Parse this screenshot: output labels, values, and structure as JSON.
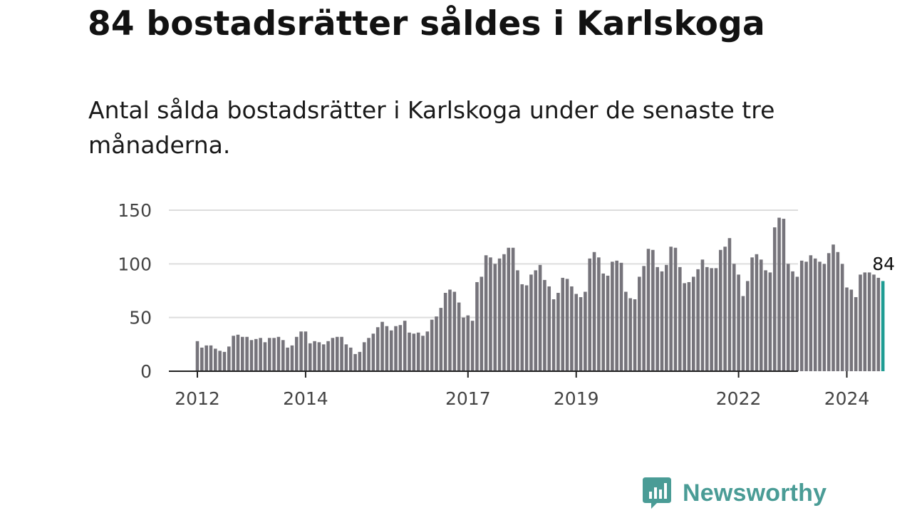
{
  "title": "84 bostadsrätter såldes i Karlskoga",
  "subtitle": "Antal sålda bostadsrätter i Karlskoga under de senaste tre månaderna.",
  "brand": {
    "name": "Newsworthy",
    "icon": "newsworthy-logo-icon",
    "color": "#4a9c96"
  },
  "colors": {
    "bar": "#76747b",
    "highlight": "#1f9c93",
    "grid": "#dddddd",
    "axis": "#222222"
  },
  "chart_data": {
    "type": "bar",
    "title": "",
    "xlabel": "",
    "ylabel": "",
    "ylim": [
      0,
      150
    ],
    "yticks": [
      "0",
      "50",
      "100",
      "150"
    ],
    "grid": true,
    "legend": "none",
    "x_start": "2012-01",
    "x_end": "2024-09",
    "xticks": [
      {
        "label": "2012",
        "month": "2012-01"
      },
      {
        "label": "2014",
        "month": "2014-01"
      },
      {
        "label": "2017",
        "month": "2017-01"
      },
      {
        "label": "2019",
        "month": "2019-01"
      },
      {
        "label": "2022",
        "month": "2022-01"
      },
      {
        "label": "2024",
        "month": "2024-01"
      }
    ],
    "highlight_label": "84",
    "values": [
      28,
      22,
      24,
      24,
      21,
      19,
      18,
      23,
      33,
      34,
      32,
      32,
      29,
      30,
      31,
      27,
      31,
      31,
      32,
      29,
      22,
      24,
      32,
      37,
      37,
      26,
      28,
      27,
      25,
      28,
      31,
      32,
      32,
      25,
      22,
      16,
      18,
      27,
      31,
      35,
      41,
      46,
      42,
      38,
      42,
      43,
      47,
      36,
      35,
      36,
      33,
      37,
      48,
      51,
      59,
      73,
      76,
      74,
      64,
      50,
      52,
      47,
      83,
      88,
      108,
      106,
      100,
      105,
      109,
      115,
      115,
      94,
      81,
      80,
      90,
      94,
      99,
      85,
      79,
      67,
      73,
      87,
      86,
      79,
      72,
      69,
      74,
      105,
      111,
      106,
      91,
      89,
      102,
      103,
      101,
      74,
      68,
      67,
      88,
      98,
      114,
      113,
      97,
      93,
      99,
      116,
      115,
      97,
      82,
      83,
      88,
      95,
      104,
      97,
      96,
      96,
      113,
      116,
      124,
      100,
      90,
      70,
      84,
      106,
      109,
      104,
      94,
      92,
      134,
      143,
      142,
      100,
      93,
      88,
      103,
      102,
      108,
      105,
      102,
      100,
      110,
      118,
      111,
      100,
      78,
      76,
      69,
      90,
      92,
      92,
      90,
      87,
      84
    ]
  }
}
